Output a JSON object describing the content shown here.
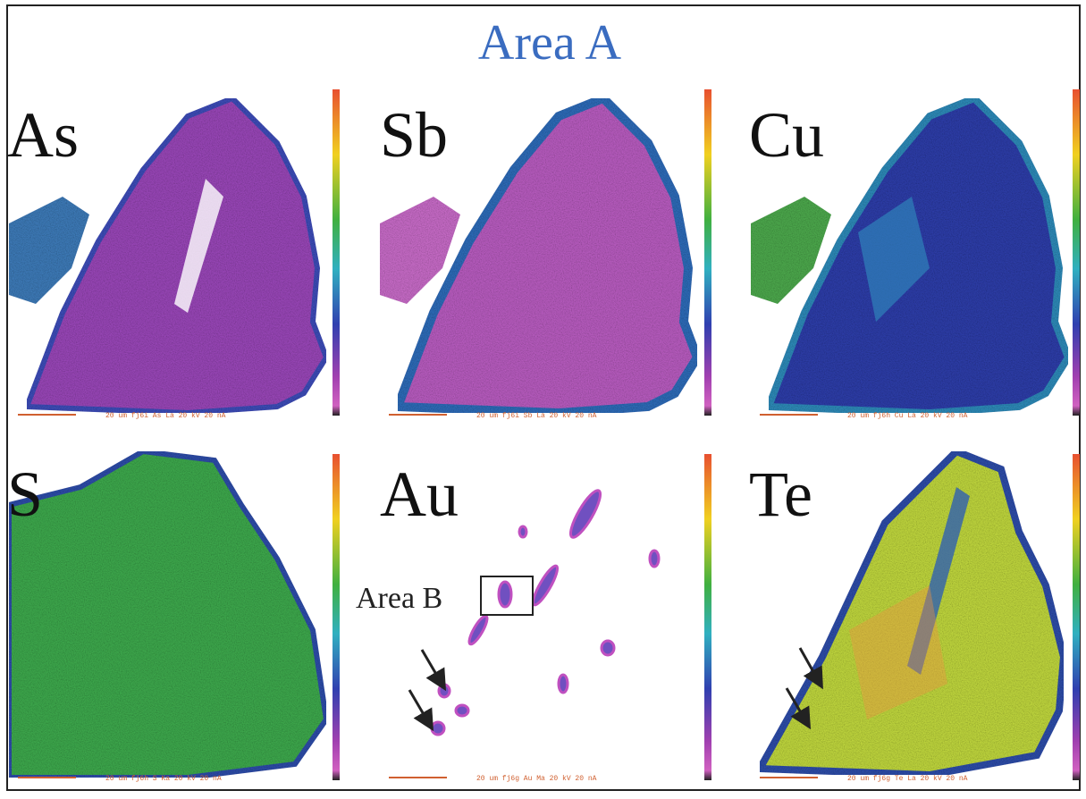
{
  "title": "Area A",
  "panels": [
    {
      "label": "As",
      "caption": "20 um   fj6i As La   20 kV  20 nA"
    },
    {
      "label": "Sb",
      "caption": "20 um   fj6i Sb La   20 kV  20 nA"
    },
    {
      "label": "Cu",
      "caption": "20 um   fj6h Cu La   20 kV  20 nA"
    },
    {
      "label": "S",
      "caption": "20 um   fj6h S Ka   20 kV  20 nA"
    },
    {
      "label": "Au",
      "caption": "20 um   fj6g Au Ma   20 kV  20 nA"
    },
    {
      "label": "Te",
      "caption": "20 um   fj6g Te La   20 kV  20 nA"
    }
  ],
  "annotation": "Area B"
}
